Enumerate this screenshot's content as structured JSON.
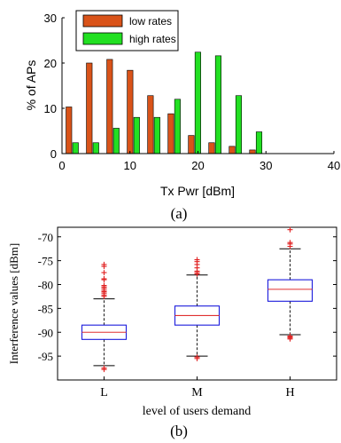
{
  "chart_data": [
    {
      "type": "bar",
      "panel_label": "(a)",
      "title": "",
      "xlabel": "Tx Pwr [dBm]",
      "ylabel": "% of APs",
      "xlim": [
        0,
        40
      ],
      "ylim": [
        0,
        30
      ],
      "x_ticks": [
        "0",
        "10",
        "20",
        "30",
        "40"
      ],
      "y_ticks": [
        "0",
        "10",
        "20",
        "30"
      ],
      "legend_position": "top-left",
      "colors": {
        "low rates": "#d95319",
        "high rates": "#22e022"
      },
      "x": [
        1.5,
        4.5,
        7.5,
        10.5,
        13.5,
        16.5,
        19.5,
        22.5,
        25.5,
        28.5
      ],
      "series": [
        {
          "name": "low rates",
          "values": [
            10.3,
            20,
            20.8,
            18.4,
            12.8,
            8.8,
            4,
            2.4,
            1.6,
            0.8
          ]
        },
        {
          "name": "high rates",
          "values": [
            2.4,
            2.4,
            5.6,
            8,
            8,
            12,
            22.4,
            21.6,
            12.8,
            4.8
          ]
        }
      ]
    },
    {
      "type": "box",
      "panel_label": "(b)",
      "title": "",
      "xlabel": "level of users demand",
      "ylabel": "Interference values [dBm]",
      "ylim": [
        -100,
        -68
      ],
      "y_ticks": [
        "-70",
        "-75",
        "-80",
        "-85",
        "-90",
        "-95"
      ],
      "categories": [
        "L",
        "M",
        "H"
      ],
      "colors": {
        "box": "#1a1adc",
        "median": "#e03030",
        "outlier": "#e02020",
        "whisker": "#000000"
      },
      "boxes": [
        {
          "category": "L",
          "whisker_low": -97,
          "q1": -91.5,
          "median": -90,
          "q3": -88.5,
          "whisker_high": -83,
          "outliers": [
            -97.5,
            -97.8,
            -82.5,
            -82.2,
            -81.8,
            -81.5,
            -81.2,
            -80.8,
            -80.5,
            -80.2,
            -79,
            -78.8,
            -77.5,
            -76.2,
            -75.8
          ]
        },
        {
          "category": "M",
          "whisker_low": -95,
          "q1": -88.5,
          "median": -86.5,
          "q3": -84.5,
          "whisker_high": -78,
          "outliers": [
            -95.2,
            -95.5,
            -77.8,
            -77.5,
            -77.2,
            -76.5,
            -75.8,
            -75.2,
            -74.8
          ]
        },
        {
          "category": "H",
          "whisker_low": -90.5,
          "q1": -83.5,
          "median": -81,
          "q3": -79,
          "whisker_high": -72.5,
          "outliers": [
            -90.8,
            -91,
            -91.2,
            -91.4,
            -72,
            -71.5,
            -71.2,
            -68.5
          ]
        }
      ]
    }
  ]
}
